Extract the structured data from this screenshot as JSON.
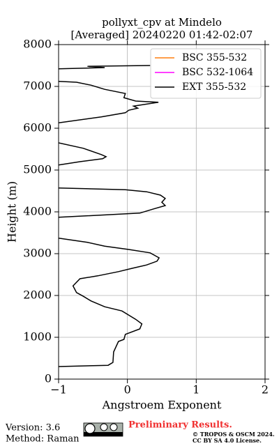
{
  "chart_data": {
    "type": "line",
    "title": "pollyxt_cpv at Mindelo",
    "subtitle": "[Averaged] 20240220 01:42-02:07",
    "x_label": "Angstroem Exponent",
    "y_label": "Height (m)",
    "heights": [
      300,
      330,
      400,
      650,
      900,
      950,
      1070,
      1200,
      1320,
      1430,
      1630,
      1730,
      1870,
      1980,
      2070,
      2230,
      2400,
      2470,
      2570,
      2650,
      2730,
      2820,
      2900,
      3020,
      3100,
      3180,
      3270,
      3370,
      3600,
      3870,
      3970,
      4070,
      4150,
      4230,
      4320,
      4400,
      4480,
      4530,
      4570,
      4800,
      5120,
      5200,
      5270,
      5320,
      5370,
      5520,
      5650,
      5900,
      6130,
      6270,
      6370,
      6430,
      6480,
      6530,
      6620,
      6650,
      6730,
      6830,
      6930,
      7030,
      7100,
      7120,
      7300,
      7420,
      7450,
      7480,
      7500
    ],
    "series": [
      {
        "name": "BSC 355-532",
        "color": "#ff7f0e"
      },
      {
        "name": "BSC 532-1064",
        "color": "#ff00ff"
      },
      {
        "name": "EXT 355-532",
        "color": "#000000",
        "values": [
          -1,
          -0.28,
          -0.21,
          -0.2,
          -0.13,
          -0.05,
          -0.03,
          0.18,
          0.21,
          0.12,
          -0.08,
          -0.33,
          -0.53,
          -0.64,
          -0.74,
          -0.79,
          -0.69,
          -0.43,
          -0.13,
          0.07,
          0.28,
          0.43,
          0.46,
          0.33,
          0.02,
          -0.33,
          -0.58,
          -1,
          null,
          -1,
          0.18,
          0.38,
          0.55,
          0.5,
          0.55,
          0.48,
          0.28,
          -0.03,
          -1,
          null,
          -1,
          -0.69,
          -0.36,
          -0.31,
          -0.38,
          -0.64,
          -1,
          null,
          -1,
          -0.38,
          -0.03,
          0.02,
          0.15,
          0.09,
          0.45,
          0.12,
          -0.05,
          -0.03,
          -0.33,
          -0.53,
          -0.74,
          -1,
          null,
          -1,
          -0.33,
          -0.58,
          0.33
        ]
      }
    ],
    "xlim": [
      -1,
      2
    ],
    "xticks": [
      {
        "value": -1,
        "label": "−1"
      },
      0,
      1,
      2
    ],
    "ylim": [
      0,
      8000
    ],
    "yticks": [
      0,
      1000,
      2000,
      3000,
      4000,
      5000,
      6000,
      7000,
      8000
    ],
    "grid": true,
    "legend": "upper right"
  },
  "footer": {
    "version": "Version: 3.6",
    "method": "Method: Raman",
    "preliminary": "Preliminary Results.",
    "copyright": "© TROPOS & OSCM 2024.",
    "license": "CC BY SA 4.0 License."
  }
}
